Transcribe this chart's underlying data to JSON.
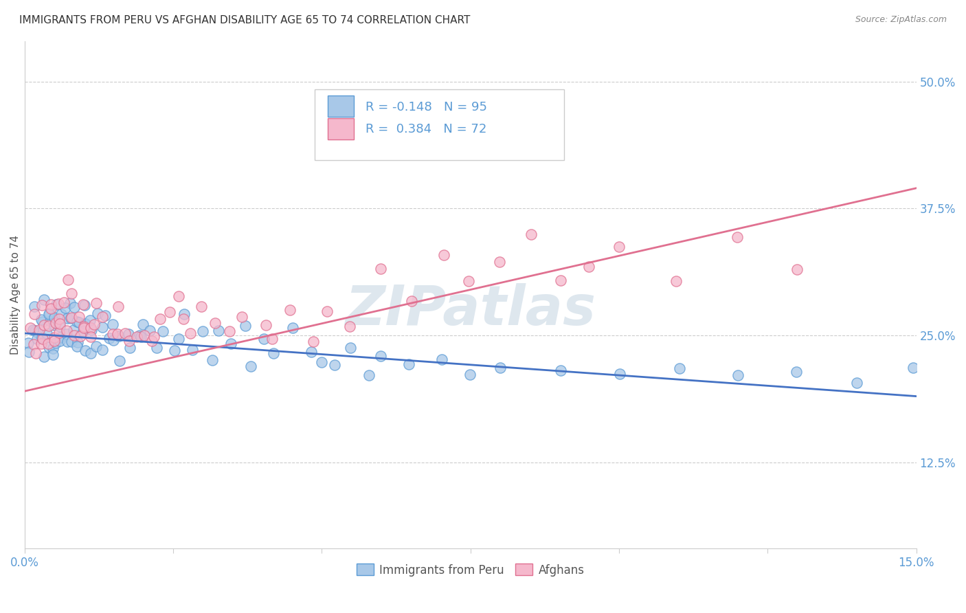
{
  "title": "IMMIGRANTS FROM PERU VS AFGHAN DISABILITY AGE 65 TO 74 CORRELATION CHART",
  "source": "Source: ZipAtlas.com",
  "ylabel": "Disability Age 65 to 74",
  "xmin": 0.0,
  "xmax": 0.15,
  "ymin": 0.04,
  "ymax": 0.54,
  "yticks": [
    0.125,
    0.25,
    0.375,
    0.5
  ],
  "ytick_labels": [
    "12.5%",
    "25.0%",
    "37.5%",
    "50.0%"
  ],
  "xticks": [
    0.0,
    0.025,
    0.05,
    0.075,
    0.1,
    0.125,
    0.15
  ],
  "xtick_labels_show": [
    "0.0%",
    "",
    "",
    "",
    "",
    "",
    "15.0%"
  ],
  "peru_color": "#a8c8e8",
  "peru_edge_color": "#5b9bd5",
  "afghan_color": "#f5b8cc",
  "afghan_edge_color": "#e07090",
  "peru_line_color": "#4472c4",
  "afghan_line_color": "#e07090",
  "peru_R": -0.148,
  "peru_N": 95,
  "afghan_R": 0.384,
  "afghan_N": 72,
  "legend_label_peru": "Immigrants from Peru",
  "legend_label_afghan": "Afghans",
  "watermark": "ZIPatlas",
  "peru_line_x0": 0.0,
  "peru_line_y0": 0.252,
  "peru_line_x1": 0.15,
  "peru_line_y1": 0.19,
  "afghan_line_x0": 0.0,
  "afghan_line_y0": 0.195,
  "afghan_line_x1": 0.15,
  "afghan_line_y1": 0.395,
  "peru_x": [
    0.0005,
    0.001,
    0.0015,
    0.002,
    0.002,
    0.002,
    0.002,
    0.003,
    0.003,
    0.003,
    0.003,
    0.003,
    0.004,
    0.004,
    0.004,
    0.004,
    0.004,
    0.005,
    0.005,
    0.005,
    0.005,
    0.005,
    0.005,
    0.006,
    0.006,
    0.006,
    0.006,
    0.007,
    0.007,
    0.007,
    0.007,
    0.007,
    0.008,
    0.008,
    0.008,
    0.008,
    0.009,
    0.009,
    0.009,
    0.009,
    0.01,
    0.01,
    0.01,
    0.01,
    0.011,
    0.011,
    0.011,
    0.012,
    0.012,
    0.013,
    0.013,
    0.014,
    0.014,
    0.015,
    0.015,
    0.016,
    0.016,
    0.017,
    0.018,
    0.019,
    0.02,
    0.02,
    0.021,
    0.022,
    0.023,
    0.025,
    0.026,
    0.027,
    0.028,
    0.03,
    0.032,
    0.033,
    0.035,
    0.037,
    0.038,
    0.04,
    0.042,
    0.045,
    0.048,
    0.05,
    0.052,
    0.055,
    0.058,
    0.06,
    0.065,
    0.07,
    0.075,
    0.08,
    0.09,
    0.1,
    0.11,
    0.12,
    0.13,
    0.14,
    0.15
  ],
  "peru_y": [
    0.25,
    0.24,
    0.26,
    0.25,
    0.26,
    0.28,
    0.24,
    0.25,
    0.26,
    0.27,
    0.23,
    0.29,
    0.24,
    0.26,
    0.28,
    0.25,
    0.27,
    0.24,
    0.25,
    0.26,
    0.27,
    0.23,
    0.28,
    0.24,
    0.26,
    0.25,
    0.27,
    0.25,
    0.26,
    0.24,
    0.28,
    0.27,
    0.25,
    0.27,
    0.26,
    0.28,
    0.25,
    0.26,
    0.24,
    0.27,
    0.24,
    0.26,
    0.25,
    0.27,
    0.25,
    0.23,
    0.26,
    0.25,
    0.27,
    0.24,
    0.26,
    0.25,
    0.27,
    0.24,
    0.26,
    0.25,
    0.23,
    0.26,
    0.24,
    0.25,
    0.24,
    0.26,
    0.25,
    0.24,
    0.26,
    0.24,
    0.25,
    0.26,
    0.24,
    0.25,
    0.23,
    0.25,
    0.24,
    0.26,
    0.22,
    0.25,
    0.23,
    0.26,
    0.24,
    0.23,
    0.22,
    0.23,
    0.21,
    0.23,
    0.22,
    0.22,
    0.21,
    0.22,
    0.21,
    0.21,
    0.21,
    0.21,
    0.22,
    0.21,
    0.21
  ],
  "afghan_x": [
    0.001,
    0.001,
    0.002,
    0.002,
    0.002,
    0.003,
    0.003,
    0.003,
    0.003,
    0.004,
    0.004,
    0.004,
    0.005,
    0.005,
    0.005,
    0.005,
    0.006,
    0.006,
    0.006,
    0.006,
    0.007,
    0.007,
    0.007,
    0.008,
    0.008,
    0.008,
    0.009,
    0.009,
    0.01,
    0.01,
    0.01,
    0.011,
    0.011,
    0.012,
    0.012,
    0.013,
    0.014,
    0.015,
    0.016,
    0.017,
    0.018,
    0.019,
    0.02,
    0.021,
    0.022,
    0.023,
    0.025,
    0.026,
    0.027,
    0.028,
    0.03,
    0.032,
    0.035,
    0.037,
    0.04,
    0.042,
    0.045,
    0.048,
    0.05,
    0.055,
    0.06,
    0.065,
    0.07,
    0.075,
    0.08,
    0.085,
    0.09,
    0.095,
    0.1,
    0.11,
    0.12,
    0.13
  ],
  "afghan_y": [
    0.24,
    0.26,
    0.23,
    0.25,
    0.27,
    0.24,
    0.26,
    0.28,
    0.25,
    0.24,
    0.26,
    0.27,
    0.24,
    0.26,
    0.28,
    0.25,
    0.26,
    0.28,
    0.25,
    0.27,
    0.3,
    0.28,
    0.26,
    0.27,
    0.29,
    0.25,
    0.27,
    0.25,
    0.26,
    0.28,
    0.25,
    0.27,
    0.25,
    0.26,
    0.28,
    0.27,
    0.26,
    0.25,
    0.27,
    0.26,
    0.24,
    0.25,
    0.25,
    0.25,
    0.25,
    0.26,
    0.27,
    0.28,
    0.26,
    0.25,
    0.27,
    0.26,
    0.25,
    0.27,
    0.26,
    0.25,
    0.27,
    0.25,
    0.27,
    0.26,
    0.31,
    0.28,
    0.32,
    0.3,
    0.33,
    0.35,
    0.31,
    0.32,
    0.33,
    0.3,
    0.35,
    0.32
  ]
}
